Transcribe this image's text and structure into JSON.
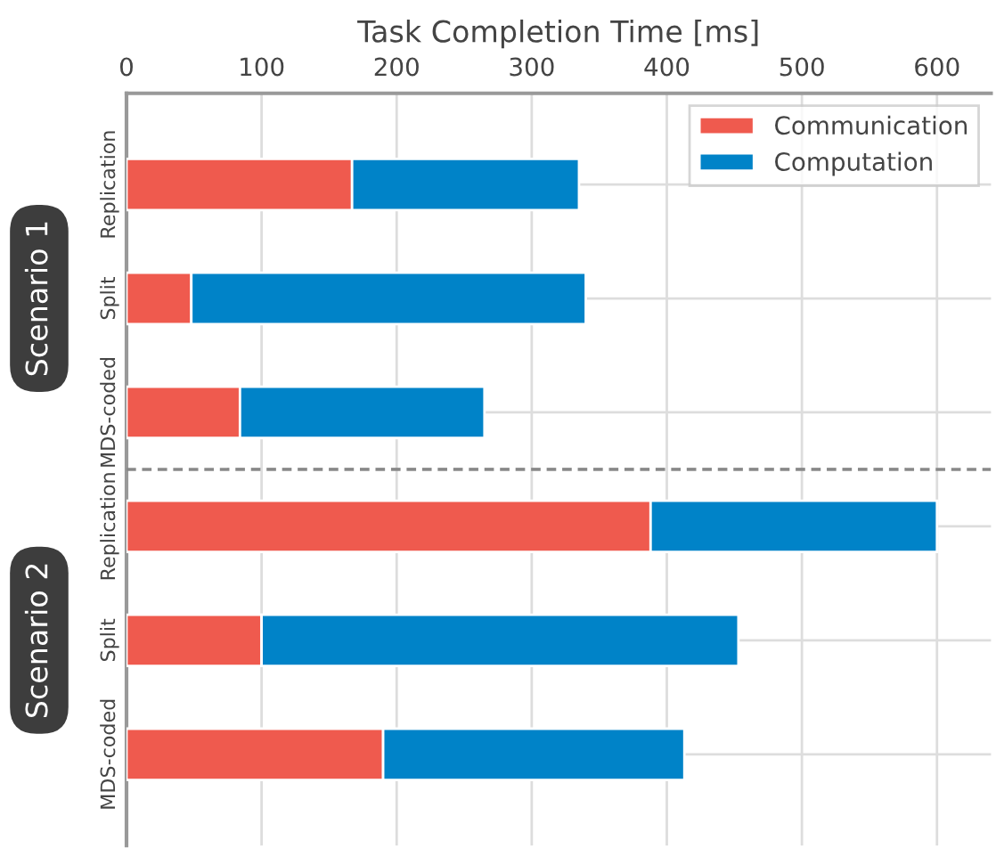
{
  "chart_data": {
    "type": "bar",
    "orientation": "horizontal",
    "stacked": true,
    "xlabel": "Task Completion Time [ms]",
    "categories": [
      "Replication",
      "Split",
      "MDS-coded",
      "Replication",
      "Split",
      "MDS-coded"
    ],
    "series": [
      {
        "name": "Communication",
        "color": "#ef5a4e",
        "values": [
          167,
          48,
          84,
          388,
          100,
          190
        ]
      },
      {
        "name": "Computation",
        "color": "#0083c8",
        "values": [
          168,
          292,
          181,
          212,
          353,
          223
        ]
      }
    ],
    "xlim": [
      0,
      640
    ],
    "xticks": [
      0,
      100,
      200,
      300,
      400,
      500,
      600
    ],
    "annotations": [
      "Scenario 1",
      "Scenario 2"
    ],
    "grid": true,
    "legend": "top right"
  }
}
